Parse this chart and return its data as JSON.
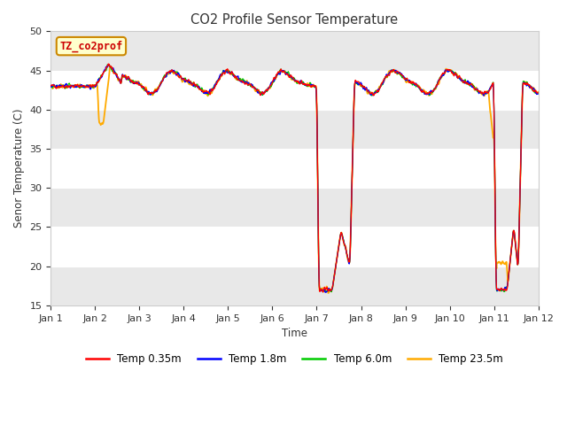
{
  "title": "CO2 Profile Sensor Temperature",
  "xlabel": "Time",
  "ylabel": "Senor Temperature (C)",
  "ylim": [
    15,
    50
  ],
  "yticks": [
    15,
    20,
    25,
    30,
    35,
    40,
    45,
    50
  ],
  "annotation_text": "TZ_co2prof",
  "annotation_color": "#cc0000",
  "annotation_bg": "#ffffcc",
  "annotation_border": "#cc8800",
  "colors": {
    "Temp 0.35m": "#ff0000",
    "Temp 1.8m": "#0000ff",
    "Temp 6.0m": "#00cc00",
    "Temp 23.5m": "#ffaa00"
  },
  "fig_bg": "#ffffff",
  "plot_bg_light": "#ffffff",
  "plot_bg_dark": "#e8e8e8",
  "n_points": 1320
}
